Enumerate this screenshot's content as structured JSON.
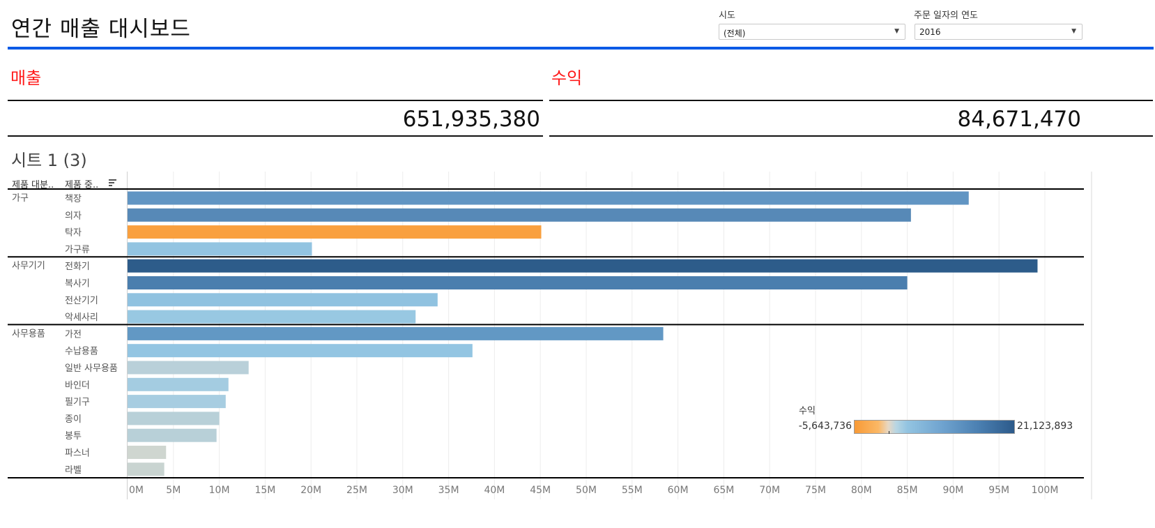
{
  "header": {
    "title": "연간 매출 대시보드"
  },
  "filters": [
    {
      "label": "시도",
      "value": "(전체)"
    },
    {
      "label": "주문 일자의 연도",
      "value": "2016"
    }
  ],
  "kpis": [
    {
      "label": "매출",
      "value": "651,935,380"
    },
    {
      "label": "수익",
      "value": "84,671,470"
    }
  ],
  "sheet": {
    "title": "시트 1 (3)",
    "col_headers": [
      "제품 대분..",
      "제품 중.."
    ],
    "sort_icon": "sort-descending-icon"
  },
  "legend": {
    "title": "수익",
    "min": "-5,643,736",
    "max": "21,123,893",
    "colors": {
      "negative": "#f89a36",
      "zero": "#e8d7c2",
      "low_positive": "#93c4e1",
      "high_positive": "#2c5a8a"
    }
  },
  "chart_data": {
    "type": "bar",
    "orientation": "horizontal",
    "title": "시트 1 (3)",
    "xlabel": "",
    "ylabel": "",
    "xlim": [
      0,
      104
    ],
    "x_unit": "M",
    "grid": true,
    "ticks": [
      "0M",
      "5M",
      "10M",
      "15M",
      "20M",
      "25M",
      "30M",
      "35M",
      "40M",
      "45M",
      "50M",
      "55M",
      "60M",
      "65M",
      "70M",
      "75M",
      "80M",
      "85M",
      "90M",
      "95M",
      "100M"
    ],
    "tick_values": [
      0,
      5,
      10,
      15,
      20,
      25,
      30,
      35,
      40,
      45,
      50,
      55,
      60,
      65,
      70,
      75,
      80,
      85,
      90,
      95,
      100
    ],
    "legend_position": "bottom-right",
    "color_by": "수익",
    "groups": [
      {
        "category": "가구",
        "items": [
          {
            "name": "책장",
            "value": 91.7,
            "color": "#6195c3"
          },
          {
            "name": "의자",
            "value": 85.4,
            "color": "#5789b7"
          },
          {
            "name": "탁자",
            "value": 45.1,
            "color": "#f9a03f"
          },
          {
            "name": "가구류",
            "value": 20.1,
            "color": "#93c4e1"
          }
        ]
      },
      {
        "category": "사무기기",
        "items": [
          {
            "name": "전화기",
            "value": 99.2,
            "color": "#2d5c8a"
          },
          {
            "name": "복사기",
            "value": 85.0,
            "color": "#4a7eae"
          },
          {
            "name": "전산기기",
            "value": 33.8,
            "color": "#90c2e0"
          },
          {
            "name": "악세사리",
            "value": 31.4,
            "color": "#98c8e2"
          }
        ]
      },
      {
        "category": "사무용품",
        "items": [
          {
            "name": "가전",
            "value": 58.4,
            "color": "#6298c4"
          },
          {
            "name": "수납용품",
            "value": 37.6,
            "color": "#93c5e2"
          },
          {
            "name": "일반 사무용품",
            "value": 13.2,
            "color": "#b9d0d9"
          },
          {
            "name": "바인더",
            "value": 11.0,
            "color": "#a4cce1"
          },
          {
            "name": "필기구",
            "value": 10.7,
            "color": "#a7cde1"
          },
          {
            "name": "종이",
            "value": 10.0,
            "color": "#b8d0d8"
          },
          {
            "name": "봉투",
            "value": 9.7,
            "color": "#b8d0d8"
          },
          {
            "name": "파스너",
            "value": 4.2,
            "color": "#cfd6d0"
          },
          {
            "name": "라벨",
            "value": 4.0,
            "color": "#c9d4d1"
          }
        ]
      }
    ]
  }
}
